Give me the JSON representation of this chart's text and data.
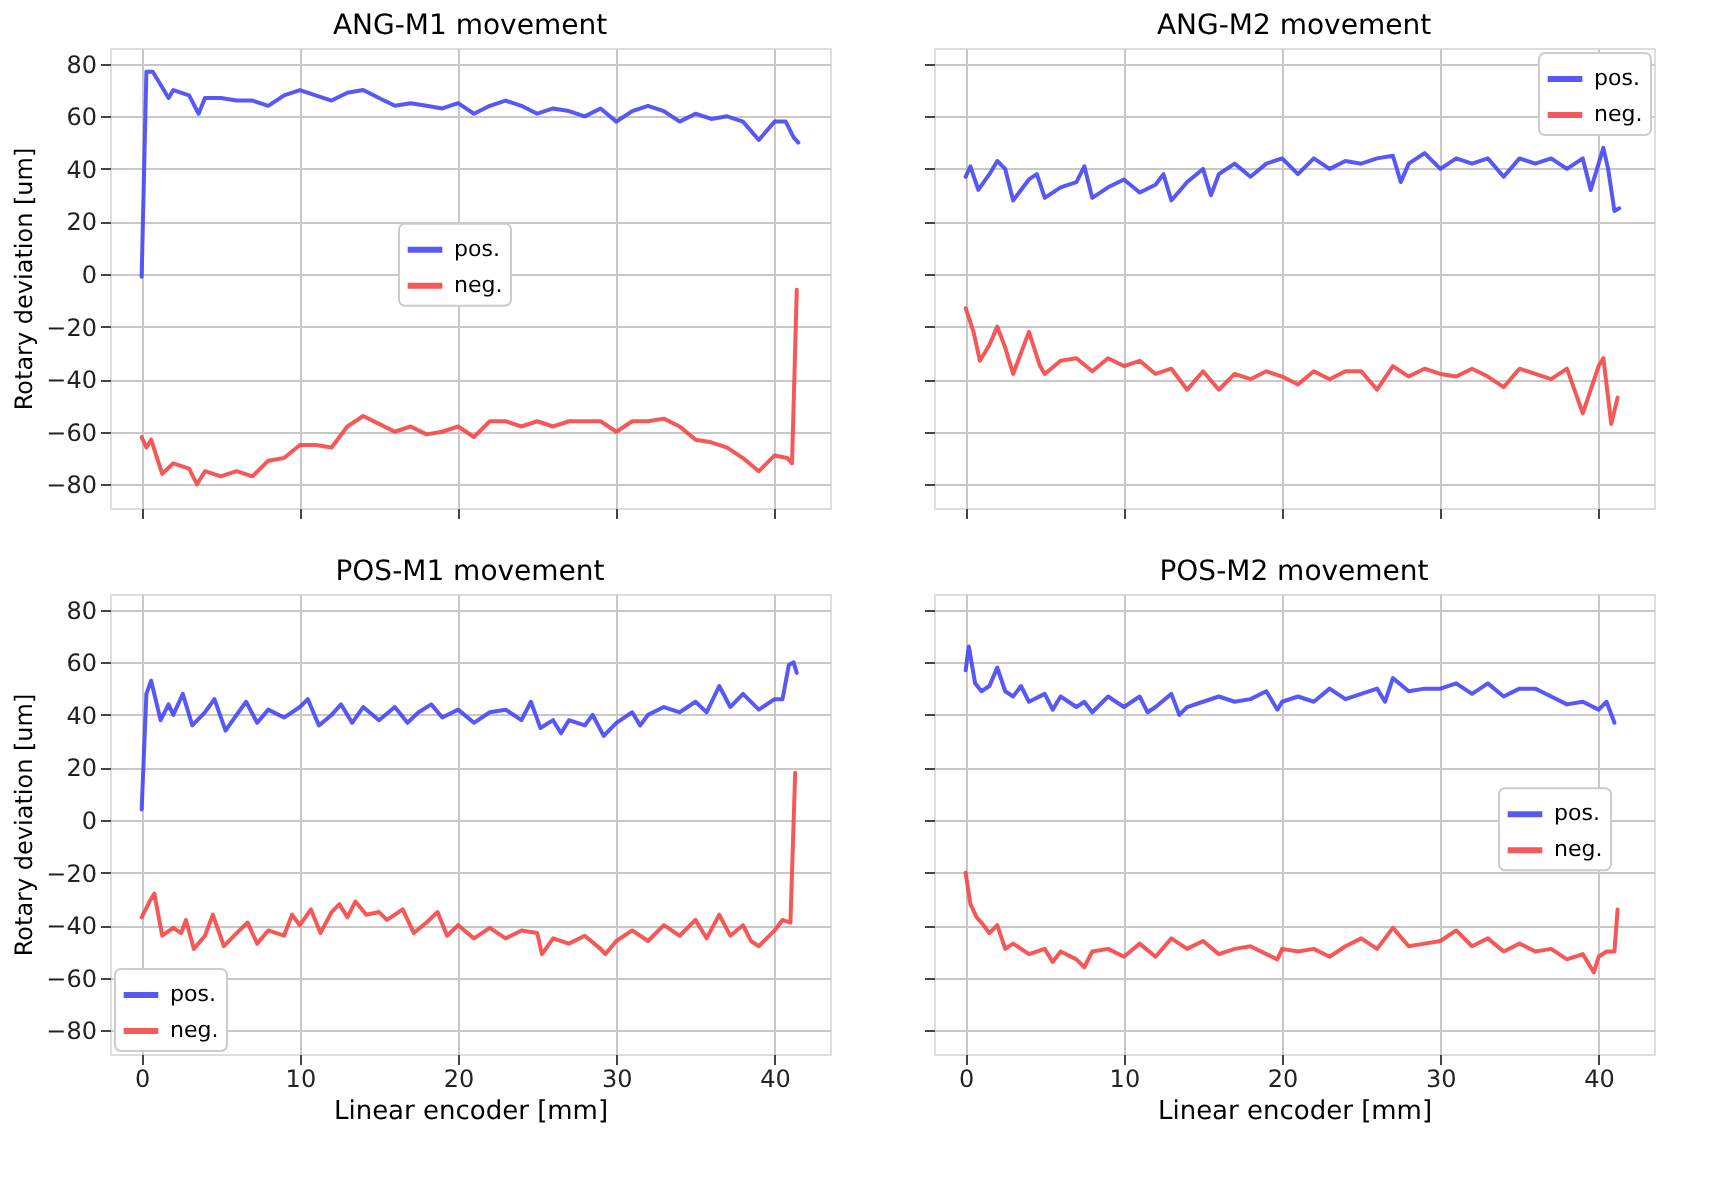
{
  "chart_data": [
    {
      "type": "line",
      "title": "ANG-M1 movement",
      "ylabel": "Rotary deviation [um]",
      "xlim": [
        -2,
        43.5
      ],
      "ylim": [
        -89,
        86
      ],
      "xticks": [
        0,
        10,
        20,
        30,
        40
      ],
      "yticks": [
        -80,
        -60,
        -40,
        -20,
        0,
        20,
        40,
        60,
        80
      ],
      "tick_labels": "y",
      "grid": true,
      "legend": "center",
      "line_style": "solid",
      "series": [
        {
          "name": "pos.",
          "color": "#4646f5",
          "x": [
            0,
            0.3,
            0.7,
            1.2,
            1.7,
            2,
            3,
            3.6,
            4,
            5,
            6,
            7,
            8,
            9,
            10,
            11,
            12,
            13,
            14,
            15,
            16,
            17,
            18,
            19,
            20,
            21,
            22,
            23,
            24,
            25,
            26,
            27,
            28,
            29,
            30,
            31,
            32,
            33,
            34,
            35,
            36,
            37,
            38,
            39,
            40,
            40.7,
            41.2,
            41.5
          ],
          "values": [
            -1,
            77,
            77,
            72,
            67,
            70,
            68,
            61,
            67,
            67,
            66,
            66,
            64,
            68,
            70,
            68,
            66,
            69,
            70,
            67,
            64,
            65,
            64,
            63,
            65,
            61,
            64,
            66,
            64,
            61,
            63,
            62,
            60,
            63,
            58,
            62,
            64,
            62,
            58,
            61,
            59,
            60,
            58,
            51,
            58,
            58,
            52,
            50
          ]
        },
        {
          "name": "neg.",
          "color": "#f54646",
          "x": [
            0,
            0.3,
            0.6,
            1.3,
            2,
            3,
            3.5,
            4,
            5,
            6,
            7,
            8,
            9,
            10,
            11,
            12,
            13,
            14,
            15,
            16,
            17,
            18,
            19,
            20,
            21,
            22,
            23,
            24,
            25,
            26,
            27,
            28,
            29,
            30,
            31,
            32,
            33,
            34,
            35,
            36,
            37,
            38,
            39,
            40,
            40.8,
            41.1,
            41.4
          ],
          "values": [
            -62,
            -66,
            -63,
            -76,
            -72,
            -74,
            -80,
            -75,
            -77,
            -75,
            -77,
            -71,
            -70,
            -65,
            -65,
            -66,
            -58,
            -54,
            -57,
            -60,
            -58,
            -61,
            -60,
            -58,
            -62,
            -56,
            -56,
            -58,
            -56,
            -58,
            -56,
            -56,
            -56,
            -60,
            -56,
            -56,
            -55,
            -58,
            -63,
            -64,
            -66,
            -70,
            -75,
            -69,
            -70,
            -72,
            -6
          ]
        }
      ]
    },
    {
      "type": "line",
      "title": "ANG-M2 movement",
      "xlim": [
        -2,
        43.5
      ],
      "ylim": [
        -89,
        86
      ],
      "xticks": [
        0,
        10,
        20,
        30,
        40
      ],
      "yticks": [
        -80,
        -60,
        -40,
        -20,
        0,
        20,
        40,
        60,
        80
      ],
      "tick_labels": false,
      "grid": true,
      "legend": "top right",
      "line_style": "solid",
      "series": [
        {
          "name": "pos.",
          "color": "#4646f5",
          "x": [
            0,
            0.3,
            0.8,
            1.5,
            2,
            2.5,
            3,
            4,
            4.5,
            5,
            6,
            7,
            7.5,
            8,
            9,
            10,
            11,
            12,
            12.5,
            13,
            14,
            15,
            15.5,
            16,
            17,
            18,
            19,
            20,
            21,
            22,
            23,
            24,
            25,
            26,
            27,
            27.5,
            28,
            29,
            30,
            31,
            32,
            33,
            34,
            35,
            36,
            37,
            38,
            39,
            39.5,
            40,
            40.3,
            40.6,
            41,
            41.3
          ],
          "values": [
            37,
            41,
            32,
            38,
            43,
            40,
            28,
            36,
            38,
            29,
            33,
            35,
            41,
            29,
            33,
            36,
            31,
            34,
            38,
            28,
            35,
            40,
            30,
            38,
            42,
            37,
            42,
            44,
            38,
            44,
            40,
            43,
            42,
            44,
            45,
            35,
            42,
            46,
            40,
            44,
            42,
            44,
            37,
            44,
            42,
            44,
            40,
            44,
            32,
            42,
            48,
            40,
            24,
            25
          ]
        },
        {
          "name": "neg.",
          "color": "#f54646",
          "x": [
            0,
            0.5,
            0.9,
            1.5,
            2,
            2.5,
            3,
            3.5,
            4,
            4.7,
            5,
            6,
            7,
            8,
            9,
            10,
            11,
            12,
            13,
            14,
            15,
            16,
            17,
            18,
            19,
            20,
            21,
            22,
            23,
            24,
            25,
            26,
            27,
            28,
            29,
            30,
            31,
            32,
            33,
            34,
            35,
            36,
            37,
            38,
            39,
            40,
            40.3,
            40.8,
            41.2
          ],
          "values": [
            -13,
            -22,
            -33,
            -27,
            -20,
            -28,
            -38,
            -30,
            -22,
            -35,
            -38,
            -33,
            -32,
            -37,
            -32,
            -35,
            -33,
            -38,
            -36,
            -44,
            -37,
            -44,
            -38,
            -40,
            -37,
            -39,
            -42,
            -37,
            -40,
            -37,
            -37,
            -44,
            -35,
            -39,
            -36,
            -38,
            -39,
            -36,
            -39,
            -43,
            -36,
            -38,
            -40,
            -36,
            -53,
            -35,
            -32,
            -57,
            -47
          ]
        }
      ]
    },
    {
      "type": "line",
      "title": "POS-M1 movement",
      "xlabel": "Linear encoder [mm]",
      "ylabel": "Rotary deviation [um]",
      "xlim": [
        -2,
        43.5
      ],
      "ylim": [
        -89,
        86
      ],
      "xticks": [
        0,
        10,
        20,
        30,
        40
      ],
      "yticks": [
        -80,
        -60,
        -40,
        -20,
        0,
        20,
        40,
        60,
        80
      ],
      "grid": true,
      "legend": "bottom left",
      "line_style": "solid",
      "series": [
        {
          "name": "pos.",
          "color": "#4646f5",
          "x": [
            0,
            0.3,
            0.6,
            1.2,
            1.7,
            2,
            2.6,
            3.2,
            4,
            4.6,
            5.3,
            6,
            6.6,
            7.3,
            8,
            9,
            10,
            10.5,
            11.2,
            12,
            12.6,
            13.3,
            14,
            15,
            16,
            16.8,
            17.5,
            18.3,
            19,
            20,
            21,
            22,
            23,
            24,
            24.6,
            25.2,
            26,
            26.5,
            27,
            28,
            28.5,
            29.2,
            30,
            31,
            31.5,
            32,
            33,
            34,
            35,
            35.7,
            36.5,
            37.2,
            38,
            39,
            40,
            40.5,
            40.9,
            41.2,
            41.4
          ],
          "values": [
            4,
            48,
            53,
            38,
            44,
            40,
            48,
            36,
            41,
            46,
            34,
            40,
            45,
            37,
            42,
            39,
            43,
            46,
            36,
            40,
            44,
            37,
            43,
            38,
            43,
            37,
            41,
            44,
            39,
            42,
            37,
            41,
            42,
            38,
            45,
            35,
            38,
            33,
            38,
            36,
            40,
            32,
            37,
            41,
            36,
            40,
            43,
            41,
            45,
            41,
            51,
            43,
            48,
            42,
            46,
            46,
            59,
            60,
            56
          ]
        },
        {
          "name": "neg.",
          "color": "#f54646",
          "x": [
            0,
            0.5,
            0.8,
            1.3,
            2,
            2.5,
            2.8,
            3.3,
            4,
            4.5,
            5.2,
            6,
            6.7,
            7.3,
            8,
            9,
            9.5,
            10,
            10.7,
            11.3,
            12,
            12.5,
            13,
            13.5,
            14.2,
            15,
            15.5,
            16.5,
            17.2,
            18,
            18.7,
            19.3,
            20,
            21,
            22,
            23,
            24,
            25,
            25.3,
            26,
            27,
            28,
            29,
            29.3,
            30,
            31,
            32,
            33,
            34,
            35,
            35.7,
            36.5,
            37.2,
            38,
            38.5,
            39,
            40,
            40.5,
            41,
            41.3
          ],
          "values": [
            -37,
            -31,
            -28,
            -44,
            -41,
            -43,
            -38,
            -49,
            -44,
            -36,
            -48,
            -43,
            -39,
            -47,
            -42,
            -44,
            -36,
            -40,
            -34,
            -43,
            -35,
            -32,
            -37,
            -31,
            -36,
            -35,
            -38,
            -34,
            -43,
            -39,
            -35,
            -44,
            -40,
            -45,
            -41,
            -45,
            -42,
            -43,
            -51,
            -45,
            -47,
            -44,
            -49,
            -51,
            -46,
            -42,
            -46,
            -40,
            -44,
            -38,
            -45,
            -36,
            -44,
            -40,
            -46,
            -48,
            -42,
            -38,
            -39,
            18
          ]
        }
      ]
    },
    {
      "type": "line",
      "title": "POS-M2 movement",
      "xlabel": "Linear encoder [mm]",
      "xlim": [
        -2,
        43.5
      ],
      "ylim": [
        -89,
        86
      ],
      "xticks": [
        0,
        10,
        20,
        30,
        40
      ],
      "yticks": [
        -80,
        -60,
        -40,
        -20,
        0,
        20,
        40,
        60,
        80
      ],
      "tick_labels": "x",
      "grid": true,
      "legend": "center right",
      "line_style": "solid",
      "series": [
        {
          "name": "pos.",
          "color": "#4646f5",
          "x": [
            0,
            0.2,
            0.6,
            1,
            1.5,
            2,
            2.5,
            3,
            3.5,
            4,
            5,
            5.5,
            6,
            7,
            7.5,
            8,
            9,
            10,
            11,
            11.5,
            12,
            13,
            13.5,
            14,
            15,
            16,
            17,
            18,
            19,
            19.7,
            20,
            21,
            22,
            23,
            24,
            25,
            26,
            26.5,
            27,
            28,
            29,
            30,
            31,
            32,
            33,
            34,
            35,
            36,
            37,
            38,
            39,
            40,
            40.5,
            41
          ],
          "values": [
            57,
            66,
            52,
            49,
            51,
            58,
            49,
            47,
            51,
            45,
            48,
            42,
            47,
            43,
            45,
            41,
            47,
            43,
            47,
            41,
            43,
            48,
            40,
            43,
            45,
            47,
            45,
            46,
            49,
            42,
            45,
            47,
            45,
            50,
            46,
            48,
            50,
            45,
            54,
            49,
            50,
            50,
            52,
            48,
            52,
            47,
            50,
            50,
            47,
            44,
            45,
            42,
            45,
            37
          ]
        },
        {
          "name": "neg.",
          "color": "#f54646",
          "x": [
            0,
            0.3,
            0.7,
            1,
            1.5,
            2,
            2.5,
            3,
            4,
            5,
            5.5,
            6,
            7,
            7.5,
            8,
            9,
            10,
            11,
            12,
            13,
            14,
            15,
            16,
            17,
            18,
            19,
            19.7,
            20,
            21,
            22,
            23,
            24,
            25,
            26,
            27,
            28,
            29,
            30,
            31,
            32,
            33,
            34,
            35,
            36,
            37,
            38,
            39,
            39.7,
            40,
            40.5,
            41,
            41.2
          ],
          "values": [
            -20,
            -32,
            -37,
            -39,
            -43,
            -40,
            -49,
            -47,
            -51,
            -49,
            -54,
            -50,
            -53,
            -56,
            -50,
            -49,
            -52,
            -47,
            -52,
            -45,
            -49,
            -46,
            -51,
            -49,
            -48,
            -51,
            -53,
            -49,
            -50,
            -49,
            -52,
            -48,
            -45,
            -49,
            -41,
            -48,
            -47,
            -46,
            -42,
            -48,
            -45,
            -50,
            -47,
            -50,
            -49,
            -53,
            -51,
            -58,
            -52,
            -50,
            -50,
            -34
          ]
        }
      ]
    }
  ]
}
